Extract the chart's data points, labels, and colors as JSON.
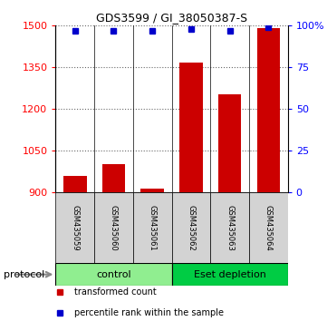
{
  "title": "GDS3599 / GI_38050387-S",
  "samples": [
    "GSM435059",
    "GSM435060",
    "GSM435061",
    "GSM435062",
    "GSM435063",
    "GSM435064"
  ],
  "red_values": [
    960,
    1002,
    915,
    1368,
    1252,
    1490
  ],
  "blue_values": [
    97,
    97,
    97,
    98,
    97,
    99
  ],
  "ymin": 900,
  "ymax": 1500,
  "yticks": [
    900,
    1050,
    1200,
    1350,
    1500
  ],
  "right_yticks": [
    0,
    25,
    50,
    75,
    100
  ],
  "right_yticklabels": [
    "0",
    "25",
    "50",
    "75",
    "100%"
  ],
  "bar_color": "#cc0000",
  "dot_color": "#0000cc",
  "groups": [
    {
      "label": "control",
      "start": 0,
      "end": 3,
      "color": "#90ee90"
    },
    {
      "label": "Eset depletion",
      "start": 3,
      "end": 6,
      "color": "#00cc44"
    }
  ],
  "protocol_label": "protocol",
  "background_color": "#ffffff",
  "sample_box_color": "#d3d3d3",
  "legend_items": [
    {
      "label": "transformed count",
      "color": "#cc0000"
    },
    {
      "label": "percentile rank within the sample",
      "color": "#0000cc"
    }
  ]
}
